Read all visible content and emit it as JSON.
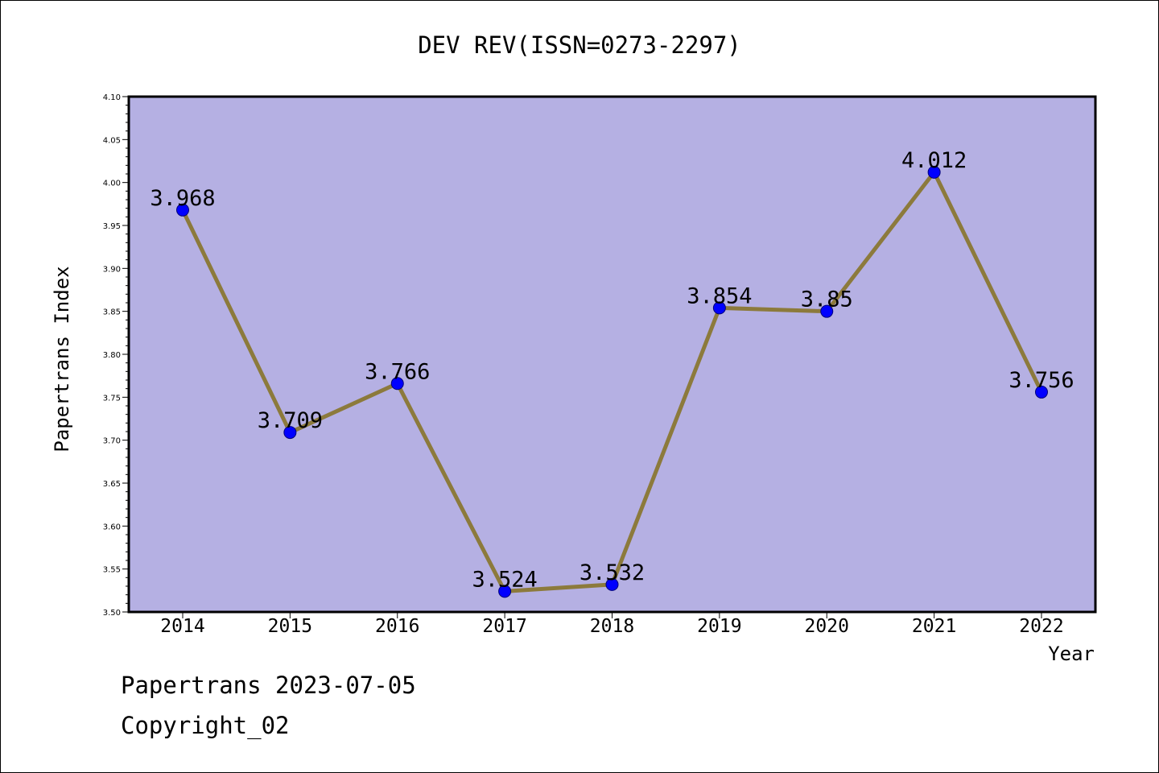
{
  "chart_data": {
    "type": "line",
    "title": "DEV REV(ISSN=0273-2297)",
    "xlabel": "Year",
    "ylabel": "Papertrans Index",
    "categories": [
      "2014",
      "2015",
      "2016",
      "2017",
      "2018",
      "2019",
      "2020",
      "2021",
      "2022"
    ],
    "series": [
      {
        "values": [
          3.968,
          3.709,
          3.766,
          3.524,
          3.532,
          3.854,
          3.85,
          4.012,
          3.756
        ],
        "labels": [
          "3.968",
          "3.709",
          "3.766",
          "3.524",
          "3.532",
          "3.854",
          "3.85",
          "4.012",
          "3.756"
        ]
      }
    ],
    "ylim": [
      3.5,
      4.1
    ],
    "yticks": [
      "3.50",
      "3.55",
      "3.60",
      "3.65",
      "3.70",
      "3.75",
      "3.80",
      "3.85",
      "3.90",
      "3.95",
      "4.00",
      "4.05",
      "4.10"
    ],
    "grid": false,
    "colors": {
      "plot_bg": "#b5b0e3",
      "line": "#8c7a3c",
      "marker": "#0000ff"
    }
  },
  "footer": {
    "line1": "Papertrans 2023-07-05",
    "line2": "Copyright_02"
  }
}
